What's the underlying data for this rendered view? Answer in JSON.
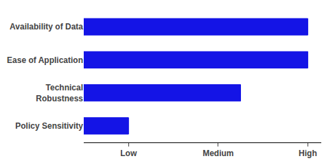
{
  "chart_data": {
    "type": "bar",
    "orientation": "horizontal",
    "categories": [
      "Policy Sensitivity",
      "Technical\nRobustness",
      "Ease of Application",
      "Availability of Data"
    ],
    "values": [
      1,
      3.5,
      5,
      5
    ],
    "color": "#1414e6",
    "xlim": [
      0,
      5.3
    ],
    "xticks": [
      {
        "value": 1,
        "label": "Low"
      },
      {
        "value": 3,
        "label": "Medium"
      },
      {
        "value": 5,
        "label": "High"
      }
    ],
    "grid": false
  }
}
